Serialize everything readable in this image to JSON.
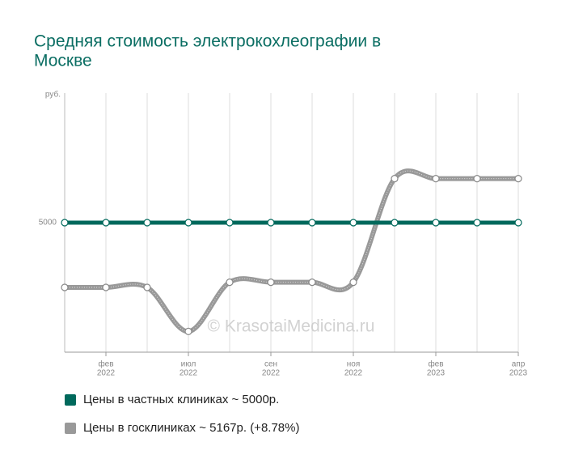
{
  "chart_data": {
    "type": "line",
    "title": [
      "Средняя стоимость электрокохлеографии в",
      "Москве"
    ],
    "ylabel": "руб.",
    "watermark": "© KrasotaiMedicina.ru",
    "categories": [
      null,
      [
        "фев",
        "2022"
      ],
      null,
      [
        "июл",
        "2022"
      ],
      null,
      [
        "сен",
        "2022"
      ],
      null,
      [
        "ноя",
        "2022"
      ],
      null,
      [
        "фев",
        "2023"
      ],
      null,
      [
        "апр",
        "2023"
      ]
    ],
    "series": [
      {
        "name": "Цены в частных клиниках ~ 5000р.",
        "color": "#00695c",
        "values": [
          5000,
          5000,
          5000,
          5000,
          5000,
          5000,
          5000,
          5000,
          5000,
          5000,
          5000,
          5000
        ]
      },
      {
        "name": "Цены в госклиниках ~ 5167р. (+8.78%)",
        "color": "#999999",
        "values": [
          2500,
          2500,
          2500,
          800,
          2700,
          2700,
          2700,
          2700,
          6700,
          6700,
          6700,
          6700
        ]
      }
    ],
    "ylim": [
      0,
      10000
    ],
    "yticks": [
      5000
    ],
    "grid": true
  }
}
